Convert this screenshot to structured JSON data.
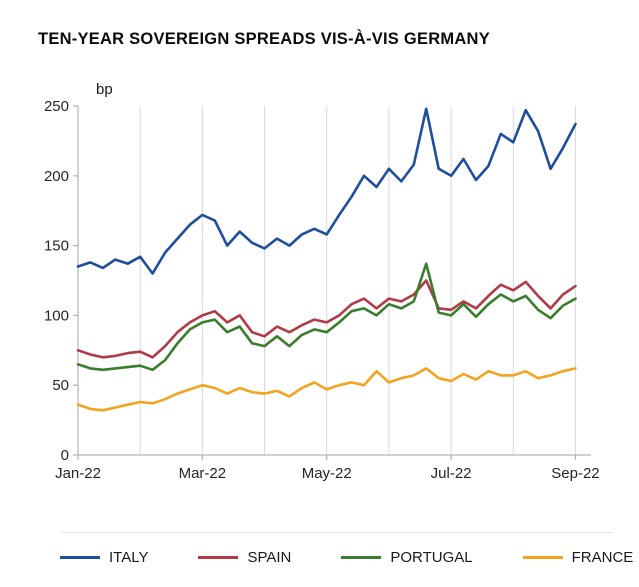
{
  "title": "TEN-YEAR SOVEREIGN SPREADS VIS-À-VIS GERMANY",
  "y_unit_label": "bp",
  "chart_data": {
    "type": "line",
    "title": "TEN-YEAR SOVEREIGN SPREADS VIS-À-VIS GERMANY",
    "ylabel": "bp",
    "xlabel": "",
    "x_unit": "months since Jan-22",
    "xlim": [
      0,
      8.25
    ],
    "ylim": [
      0,
      250
    ],
    "y_ticks": [
      0,
      50,
      100,
      150,
      200,
      250
    ],
    "x_ticks": [
      {
        "pos": 0,
        "label": "Jan-22"
      },
      {
        "pos": 2,
        "label": "Mar-22"
      },
      {
        "pos": 4,
        "label": "May-22"
      },
      {
        "pos": 6,
        "label": "Jul-22"
      },
      {
        "pos": 8,
        "label": "Sep-22"
      }
    ],
    "x_gridlines": [
      1,
      2,
      3,
      4,
      5,
      6,
      7,
      8
    ],
    "grid": "vertical-only",
    "legend_position": "bottom",
    "axis_color": "#b3b3b3",
    "gridline_color": "#d9d9d9",
    "tick_label_color": "#262626",
    "series": [
      {
        "name": "ITALY",
        "color": "#1F4E9E",
        "values": [
          135,
          138,
          134,
          140,
          137,
          142,
          130,
          145,
          155,
          165,
          172,
          168,
          150,
          160,
          152,
          148,
          155,
          150,
          158,
          162,
          158,
          172,
          185,
          200,
          192,
          205,
          196,
          208,
          248,
          205,
          200,
          212,
          197,
          207,
          230,
          224,
          247,
          232,
          205,
          220,
          237
        ]
      },
      {
        "name": "SPAIN",
        "color": "#B23A48",
        "values": [
          75,
          72,
          70,
          71,
          73,
          74,
          70,
          78,
          88,
          95,
          100,
          103,
          95,
          100,
          88,
          85,
          92,
          88,
          93,
          97,
          95,
          100,
          108,
          112,
          105,
          112,
          110,
          115,
          125,
          105,
          104,
          110,
          105,
          114,
          122,
          118,
          124,
          114,
          105,
          115,
          121
        ]
      },
      {
        "name": "PORTUGAL",
        "color": "#3A7D2C",
        "values": [
          65,
          62,
          61,
          62,
          63,
          64,
          61,
          68,
          80,
          90,
          95,
          97,
          88,
          92,
          80,
          78,
          85,
          78,
          86,
          90,
          88,
          95,
          103,
          105,
          100,
          108,
          105,
          110,
          137,
          102,
          100,
          108,
          99,
          108,
          115,
          110,
          114,
          104,
          98,
          107,
          112
        ]
      },
      {
        "name": "FRANCE",
        "color": "#F5A31F",
        "values": [
          36,
          33,
          32,
          34,
          36,
          38,
          37,
          40,
          44,
          47,
          50,
          48,
          44,
          48,
          45,
          44,
          46,
          42,
          48,
          52,
          47,
          50,
          52,
          50,
          60,
          52,
          55,
          57,
          62,
          55,
          53,
          58,
          54,
          60,
          57,
          57,
          60,
          55,
          57,
          60,
          62
        ]
      }
    ]
  }
}
